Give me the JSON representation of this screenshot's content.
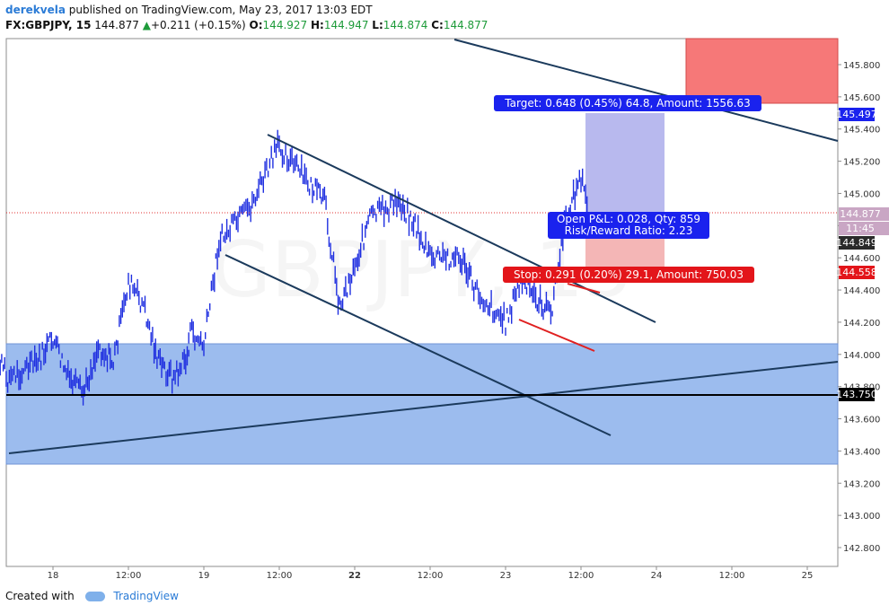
{
  "header": {
    "author": "derekvela",
    "published": "published on TradingView.com, May 23, 2017 13:03 EDT",
    "symbol": "FX:GBPJPY, 15",
    "last": "144.877",
    "arrow": "▲",
    "change": "+0.211 (+0.15%)",
    "o_label": "O:",
    "o": "144.927",
    "h_label": "H:",
    "h": "144.947",
    "l_label": "L:",
    "l": "144.874",
    "c_label": "C:",
    "c": "144.877"
  },
  "footer": {
    "created": "Created with",
    "brand": "TradingView"
  },
  "watermark": "GBPJPY, 15",
  "colors": {
    "candle": "#1f2fe0",
    "trendline": "#1b3a5c",
    "zone": "#9cbcee",
    "target": "#b8b9ee",
    "stop_fill": "#f4b6b6",
    "red_zone": "#f67878",
    "target_label": "#1a22ee",
    "stop_label": "#e3151a",
    "support_line": "#000000"
  },
  "annotations": {
    "target": "Target: 0.648 (0.45%) 64.8, Amount: 1556.63",
    "pnl_line1": "Open P&L: 0.028, Qty: 859",
    "pnl_line2": "Risk/Reward Ratio: 2.23",
    "stop": "Stop: 0.291 (0.20%) 29.1, Amount: 750.03"
  },
  "price_tags": {
    "target": "145.497",
    "last": "144.877",
    "countdown": "11:45",
    "entry": "144.849",
    "stop": "144.558",
    "support": "143.750"
  },
  "chart_data": {
    "type": "candlestick",
    "symbol": "FX:GBPJPY",
    "interval": "15",
    "ylim": [
      142.8,
      145.9
    ],
    "yticks": [
      "145.800",
      "145.600",
      "145.400",
      "145.200",
      "145.000",
      "144.800",
      "144.600",
      "144.400",
      "144.200",
      "144.000",
      "143.800",
      "143.600",
      "143.400",
      "143.200",
      "143.000",
      "142.800"
    ],
    "xticks": [
      "18",
      "12:00",
      "19",
      "12:00",
      "22",
      "12:00",
      "23",
      "12:00",
      "24",
      "12:00",
      "25"
    ],
    "price_path": [
      [
        "18 -0.6",
        143.55
      ],
      [
        "18 -0.5",
        143.9
      ],
      [
        "18 -0.4",
        144.05
      ],
      [
        "18 -0.3",
        143.85
      ],
      [
        "18 -0.1",
        143.95
      ],
      [
        "18",
        144.1
      ],
      [
        "18 +0.1",
        143.85
      ],
      [
        "18 +0.2",
        143.75
      ],
      [
        "18 +0.3",
        144.05
      ],
      [
        "18 +0.4",
        143.95
      ],
      [
        "18 +0.5",
        144.45
      ],
      [
        "18 +0.6",
        144.3
      ],
      [
        "18 +0.7",
        143.95
      ],
      [
        "18 +0.8",
        143.85
      ],
      [
        "18 +0.9",
        144.0
      ],
      [
        "19 -0.1",
        144.15
      ],
      [
        "19",
        144.05
      ],
      [
        "19 +0.1",
        144.7
      ],
      [
        "19 +0.3",
        144.9
      ],
      [
        "19 +0.5",
        145.3
      ],
      [
        "19 +0.7",
        145.05
      ],
      [
        "19 +0.8",
        144.95
      ],
      [
        "19 +0.9",
        144.3
      ],
      [
        "19 +1.0",
        144.55
      ],
      [
        "22 +0.1",
        144.85
      ],
      [
        "22 +0.3",
        144.95
      ],
      [
        "22 +0.4",
        144.8
      ],
      [
        "22 +0.5",
        144.6
      ],
      [
        "22 +0.7",
        144.6
      ],
      [
        "22 +0.8",
        144.4
      ],
      [
        "23",
        144.2
      ],
      [
        "23 +0.1",
        144.45
      ],
      [
        "23 +0.2",
        144.35
      ],
      [
        "23 +0.3",
        144.25
      ],
      [
        "23 +0.4",
        144.85
      ],
      [
        "23 +0.5",
        145.1
      ],
      [
        "23 +0.55",
        144.877
      ]
    ],
    "levels": {
      "support_line": 143.75,
      "zone_range": [
        143.34,
        144.08
      ],
      "entry": 144.849,
      "target": 145.497,
      "stop": 144.558,
      "red_zone_range": [
        145.56,
        145.95
      ]
    }
  }
}
